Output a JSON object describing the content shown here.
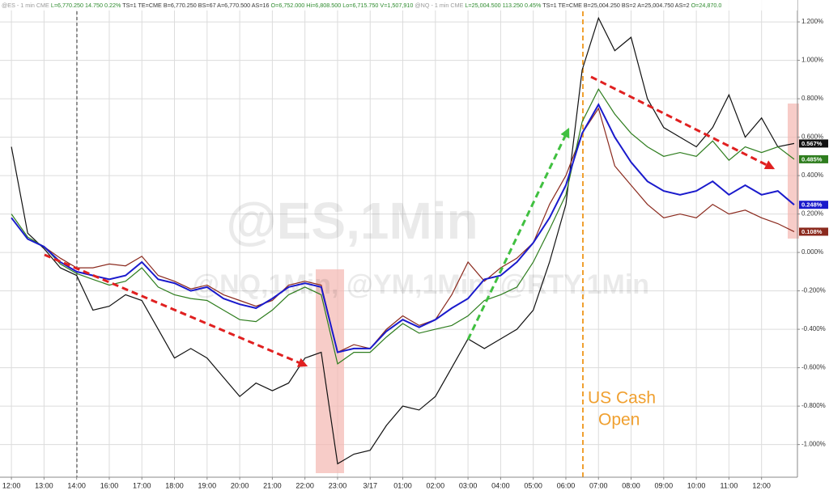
{
  "chart_data": {
    "type": "line",
    "header": [
      {
        "text": "@ES - 1 min  CME",
        "color": "#9a9a9a"
      },
      {
        "text": "L=6,770.250  14.750  0.22%",
        "color": "#2e8b2e"
      },
      {
        "text": "TS=1  TE=CME  B=6,770.250  BS=67  A=6,770.500  AS=16",
        "color": "#333333"
      },
      {
        "text": "O=6,752.000  Hi=6,808.500  Lo=6,715.750  V=1,507,910",
        "color": "#2e8b2e"
      },
      {
        "text": "@NQ - 1 min  CME",
        "color": "#9a9a9a"
      },
      {
        "text": "L=25,004.500  113.250  0.45%",
        "color": "#2e8b2e"
      },
      {
        "text": "TS=1  TE=CME  B=25,004.250  BS=2  A=25,004.750  AS=2",
        "color": "#333333"
      },
      {
        "text": "O=24,870.0",
        "color": "#2e8b2e"
      }
    ],
    "watermarks": [
      "@ES,1Min",
      "@NQ,1Min, @YM,1Min, @RTY,1Min"
    ],
    "annotations": [
      "US Cash",
      "Open"
    ],
    "x": [
      0,
      0.5,
      1,
      1.5,
      2,
      2.5,
      3,
      3.5,
      4,
      4.5,
      5,
      5.5,
      6,
      6.5,
      7,
      7.5,
      8,
      8.5,
      9,
      9.5,
      10,
      10.5,
      11,
      11.5,
      12,
      12.5,
      13,
      13.5,
      14,
      14.5,
      15,
      15.5,
      16,
      16.5,
      17,
      17.5,
      18,
      18.5,
      19,
      19.5,
      20,
      20.5,
      21,
      21.5,
      22,
      22.5,
      23,
      23.5,
      24
    ],
    "xlim": [
      -0.35,
      24.1
    ],
    "xticks": [
      {
        "value": 0,
        "label": "12:00"
      },
      {
        "value": 1,
        "label": "13:00"
      },
      {
        "value": 2,
        "label": "14:00"
      },
      {
        "value": 3,
        "label": "16:00"
      },
      {
        "value": 4,
        "label": "17:00"
      },
      {
        "value": 5,
        "label": "18:00"
      },
      {
        "value": 6,
        "label": "19:00"
      },
      {
        "value": 7,
        "label": "20:00"
      },
      {
        "value": 8,
        "label": "21:00"
      },
      {
        "value": 9,
        "label": "22:00"
      },
      {
        "value": 10,
        "label": "23:00"
      },
      {
        "value": 11,
        "label": "3/17"
      },
      {
        "value": 12,
        "label": "01:00"
      },
      {
        "value": 13,
        "label": "02:00"
      },
      {
        "value": 14,
        "label": "03:00"
      },
      {
        "value": 15,
        "label": "04:00"
      },
      {
        "value": 16,
        "label": "05:00"
      },
      {
        "value": 17,
        "label": "06:00"
      },
      {
        "value": 18,
        "label": "07:00"
      },
      {
        "value": 19,
        "label": "08:00"
      },
      {
        "value": 20,
        "label": "09:00"
      },
      {
        "value": 21,
        "label": "10:00"
      },
      {
        "value": 22,
        "label": "11:00"
      },
      {
        "value": 23,
        "label": "12:00"
      }
    ],
    "ylim": [
      -1.17,
      1.314
    ],
    "yticks": [
      {
        "value": -1.0,
        "label": "-1.000%"
      },
      {
        "value": -0.8,
        "label": "-0.800%"
      },
      {
        "value": -0.6,
        "label": "-0.600%"
      },
      {
        "value": -0.4,
        "label": "-0.400%"
      },
      {
        "value": -0.2,
        "label": "-0.200%"
      },
      {
        "value": 0,
        "label": "0.000%"
      },
      {
        "value": 0.2,
        "label": "0.200%"
      },
      {
        "value": 0.4,
        "label": "0.400%"
      },
      {
        "value": 0.6,
        "label": "0.600%"
      },
      {
        "value": 0.8,
        "label": "0.800%"
      },
      {
        "value": 1.0,
        "label": "1.000%"
      },
      {
        "value": 1.2,
        "label": "1.200%"
      }
    ],
    "grid": true,
    "series": [
      {
        "name": "@RTY",
        "color": "#111111",
        "last_label": "0.567%",
        "values": [
          0.55,
          0.1,
          0.02,
          -0.08,
          -0.12,
          -0.3,
          -0.28,
          -0.22,
          -0.25,
          -0.4,
          -0.55,
          -0.5,
          -0.55,
          -0.65,
          -0.75,
          -0.68,
          -0.72,
          -0.68,
          -0.55,
          -0.52,
          -1.1,
          -1.05,
          -1.03,
          -0.9,
          -0.8,
          -0.82,
          -0.75,
          -0.6,
          -0.45,
          -0.5,
          -0.45,
          -0.4,
          -0.3,
          -0.05,
          0.25,
          0.95,
          1.22,
          1.05,
          1.12,
          0.8,
          0.65,
          0.6,
          0.55,
          0.65,
          0.82,
          0.6,
          0.7,
          0.55,
          0.567
        ]
      },
      {
        "name": "@NQ",
        "color": "#8b2a1e",
        "last_label": "0.108%",
        "values": [
          0.18,
          0.07,
          0.03,
          -0.03,
          -0.08,
          -0.08,
          -0.06,
          -0.07,
          -0.02,
          -0.12,
          -0.15,
          -0.19,
          -0.17,
          -0.22,
          -0.25,
          -0.28,
          -0.25,
          -0.17,
          -0.15,
          -0.17,
          -0.52,
          -0.48,
          -0.5,
          -0.4,
          -0.33,
          -0.38,
          -0.35,
          -0.22,
          -0.05,
          -0.15,
          -0.08,
          -0.03,
          0.05,
          0.25,
          0.4,
          0.62,
          0.75,
          0.45,
          0.35,
          0.25,
          0.18,
          0.2,
          0.18,
          0.25,
          0.2,
          0.22,
          0.18,
          0.15,
          0.108
        ]
      },
      {
        "name": "@YM",
        "color": "#2e7d1e",
        "last_label": "0.485%",
        "values": [
          0.2,
          0.08,
          0.03,
          -0.06,
          -0.11,
          -0.14,
          -0.17,
          -0.15,
          -0.08,
          -0.18,
          -0.22,
          -0.24,
          -0.25,
          -0.3,
          -0.35,
          -0.36,
          -0.3,
          -0.22,
          -0.18,
          -0.22,
          -0.58,
          -0.52,
          -0.52,
          -0.44,
          -0.37,
          -0.42,
          -0.4,
          -0.38,
          -0.33,
          -0.25,
          -0.22,
          -0.18,
          -0.05,
          0.12,
          0.3,
          0.68,
          0.85,
          0.72,
          0.62,
          0.55,
          0.5,
          0.52,
          0.5,
          0.58,
          0.48,
          0.55,
          0.52,
          0.55,
          0.485
        ]
      },
      {
        "name": "@ES",
        "color": "#1a1acc",
        "last_label": "0.248%",
        "values": [
          0.18,
          0.07,
          0.03,
          -0.05,
          -0.1,
          -0.12,
          -0.14,
          -0.12,
          -0.05,
          -0.14,
          -0.16,
          -0.2,
          -0.18,
          -0.24,
          -0.27,
          -0.29,
          -0.24,
          -0.18,
          -0.16,
          -0.18,
          -0.52,
          -0.5,
          -0.5,
          -0.41,
          -0.35,
          -0.39,
          -0.35,
          -0.29,
          -0.24,
          -0.14,
          -0.12,
          -0.05,
          0.05,
          0.18,
          0.35,
          0.62,
          0.77,
          0.6,
          0.47,
          0.37,
          0.32,
          0.3,
          0.32,
          0.37,
          0.3,
          0.35,
          0.3,
          0.32,
          0.248
        ]
      }
    ]
  }
}
